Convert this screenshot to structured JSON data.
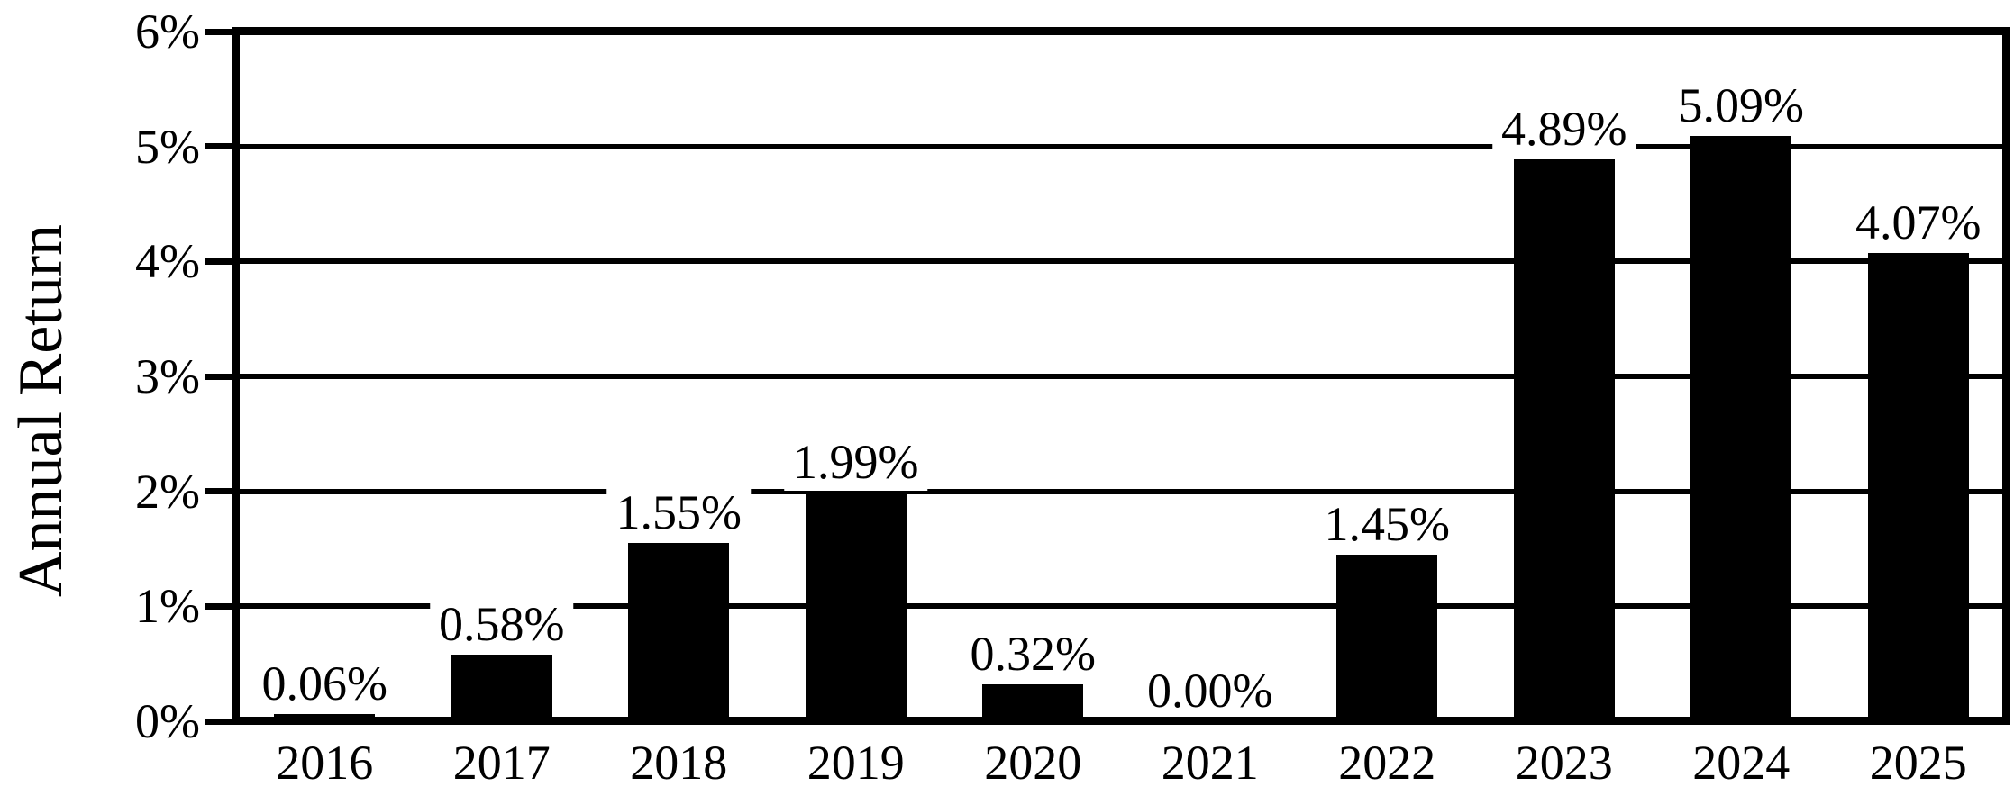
{
  "chart_data": {
    "type": "bar",
    "title": "",
    "xlabel": "",
    "ylabel": "Annual Return",
    "categories": [
      "2016",
      "2017",
      "2018",
      "2019",
      "2020",
      "2021",
      "2022",
      "2023",
      "2024",
      "2025"
    ],
    "values": [
      0.06,
      0.58,
      1.55,
      1.99,
      0.32,
      0.0,
      1.45,
      4.89,
      5.09,
      4.07
    ],
    "value_labels": [
      "0.06%",
      "0.58%",
      "1.55%",
      "1.99%",
      "0.32%",
      "0.00%",
      "1.45%",
      "4.89%",
      "5.09%",
      "4.07%"
    ],
    "y_ticks": [
      "0%",
      "1%",
      "2%",
      "3%",
      "4%",
      "5%",
      "6%"
    ],
    "y_tick_values": [
      0,
      1,
      2,
      3,
      4,
      5,
      6
    ],
    "ylim": [
      0,
      6
    ],
    "grid": "horizontal",
    "legend": "none",
    "bar_color": "#000000",
    "background_color": "#ffffff",
    "label_box_color": "#ffffff"
  }
}
